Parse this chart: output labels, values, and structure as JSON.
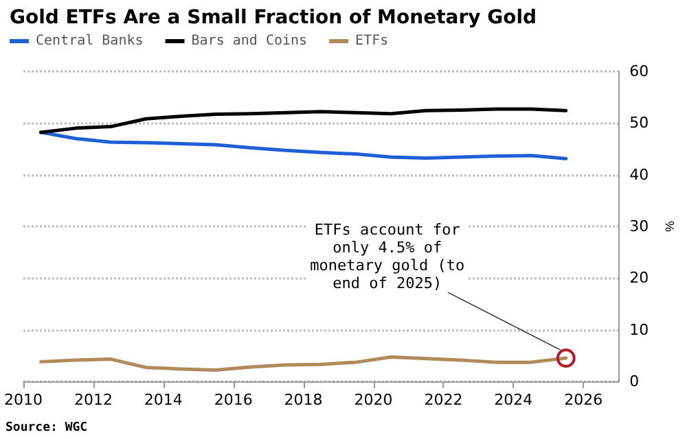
{
  "chart_data": {
    "type": "line",
    "title": "Gold ETFs Are a Small Fraction of Monetary Gold",
    "ylabel": "%",
    "x": [
      2010.5,
      2011.5,
      2012.5,
      2013.5,
      2014.5,
      2015.5,
      2016.5,
      2017.5,
      2018.5,
      2019.5,
      2020.5,
      2021.5,
      2022.5,
      2023.5,
      2024.5,
      2025.5
    ],
    "series": [
      {
        "name": "Central Banks",
        "color": "#1f5fd6",
        "values": [
          48.2,
          47,
          46.3,
          46.2,
          46,
          45.8,
          45.2,
          44.7,
          44.3,
          44,
          43.4,
          43.2,
          43.4,
          43.6,
          43.7,
          43.1
        ]
      },
      {
        "name": "Bars and Coins",
        "color": "#000000",
        "values": [
          48.2,
          49,
          49.3,
          50.8,
          51.3,
          51.7,
          51.8,
          52,
          52.2,
          52,
          51.8,
          52.4,
          52.5,
          52.7,
          52.7,
          52.4
        ]
      },
      {
        "name": "ETFs",
        "color": "#b08a5a",
        "values": [
          3.8,
          4.1,
          4.3,
          2.7,
          2.4,
          2.2,
          2.8,
          3.2,
          3.3,
          3.7,
          4.7,
          4.4,
          4.1,
          3.7,
          3.7,
          4.5
        ]
      }
    ],
    "xlim": [
      2010,
      2027
    ],
    "xticks": [
      2010,
      2012,
      2014,
      2016,
      2018,
      2020,
      2022,
      2024,
      2026
    ],
    "ylim": [
      0,
      60
    ],
    "yticks": [
      0,
      10,
      20,
      30,
      40,
      50,
      60
    ],
    "grid": "y",
    "legend": "top left",
    "marker": "none",
    "line_style": "solid",
    "annotations": [
      {
        "text": "ETFs account for only 4.5% of monetary gold (to end of 2025)",
        "x": 2025.5,
        "y": 4.5
      },
      "Source: WGC"
    ]
  }
}
